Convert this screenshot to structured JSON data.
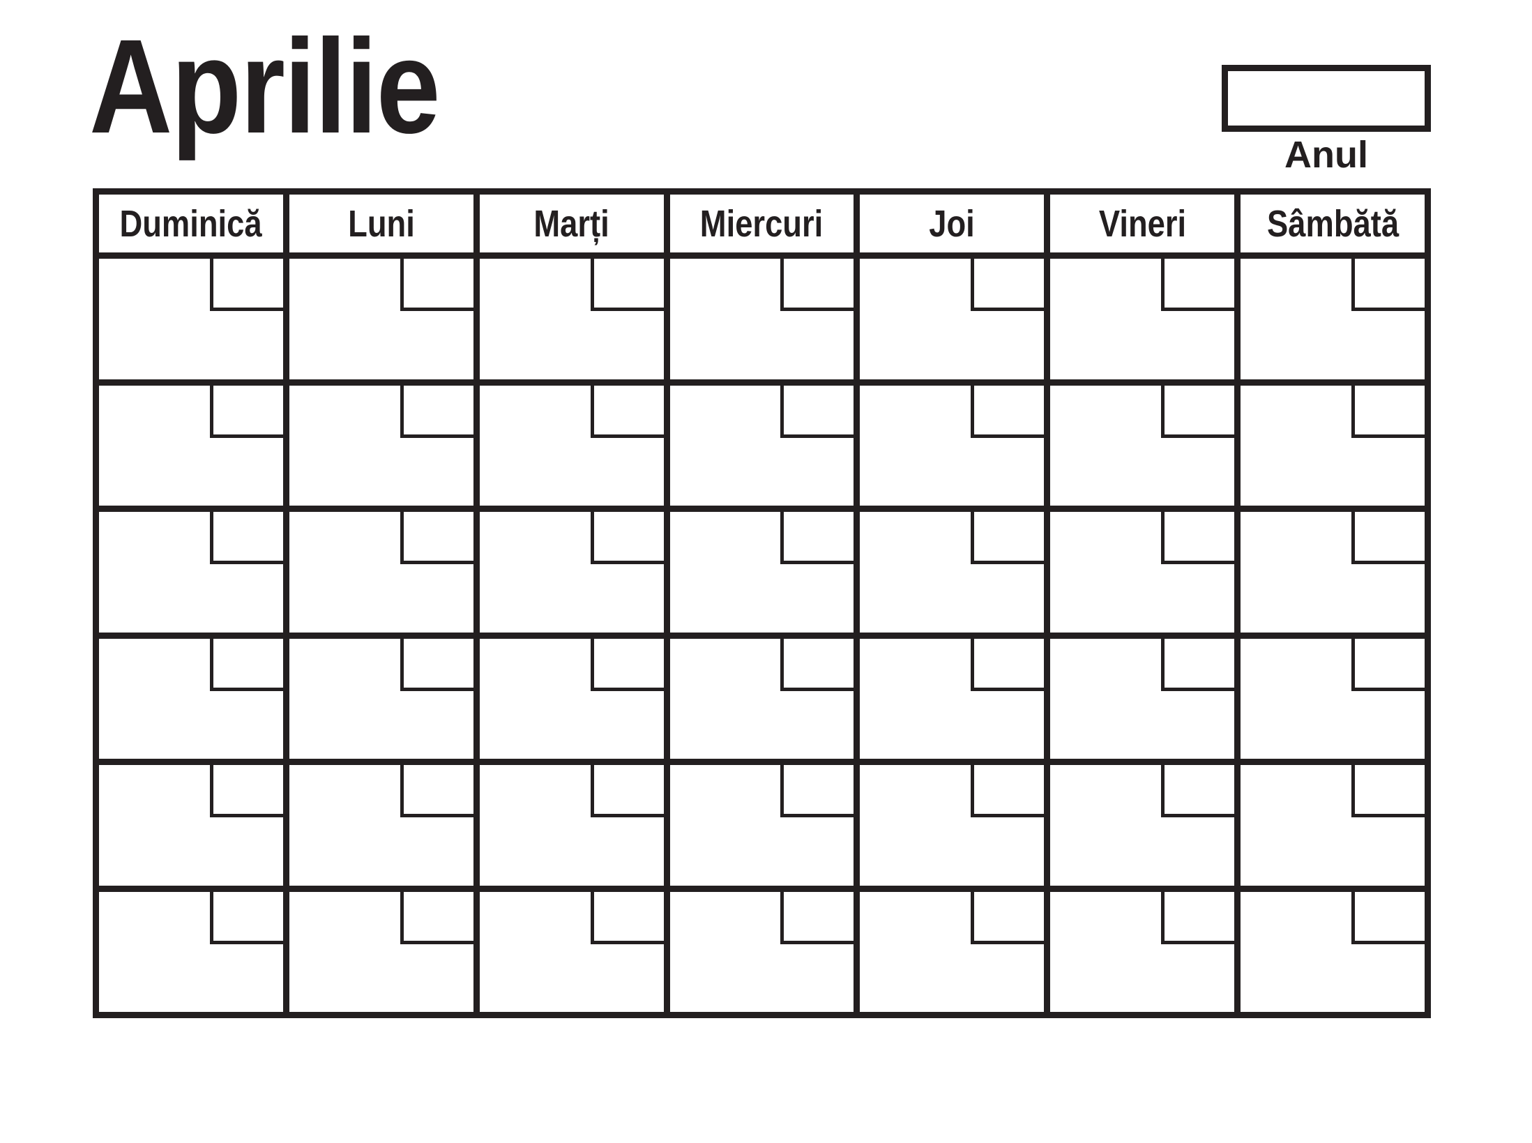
{
  "title": "Aprilie",
  "year": {
    "label": "Anul",
    "value": ""
  },
  "weekdays": [
    "Duminică",
    "Luni",
    "Marți",
    "Miercuri",
    "Joi",
    "Vineri",
    "Sâmbătă"
  ],
  "weeks": 6,
  "colors": {
    "ink": "#231f20",
    "paper": "#ffffff"
  }
}
